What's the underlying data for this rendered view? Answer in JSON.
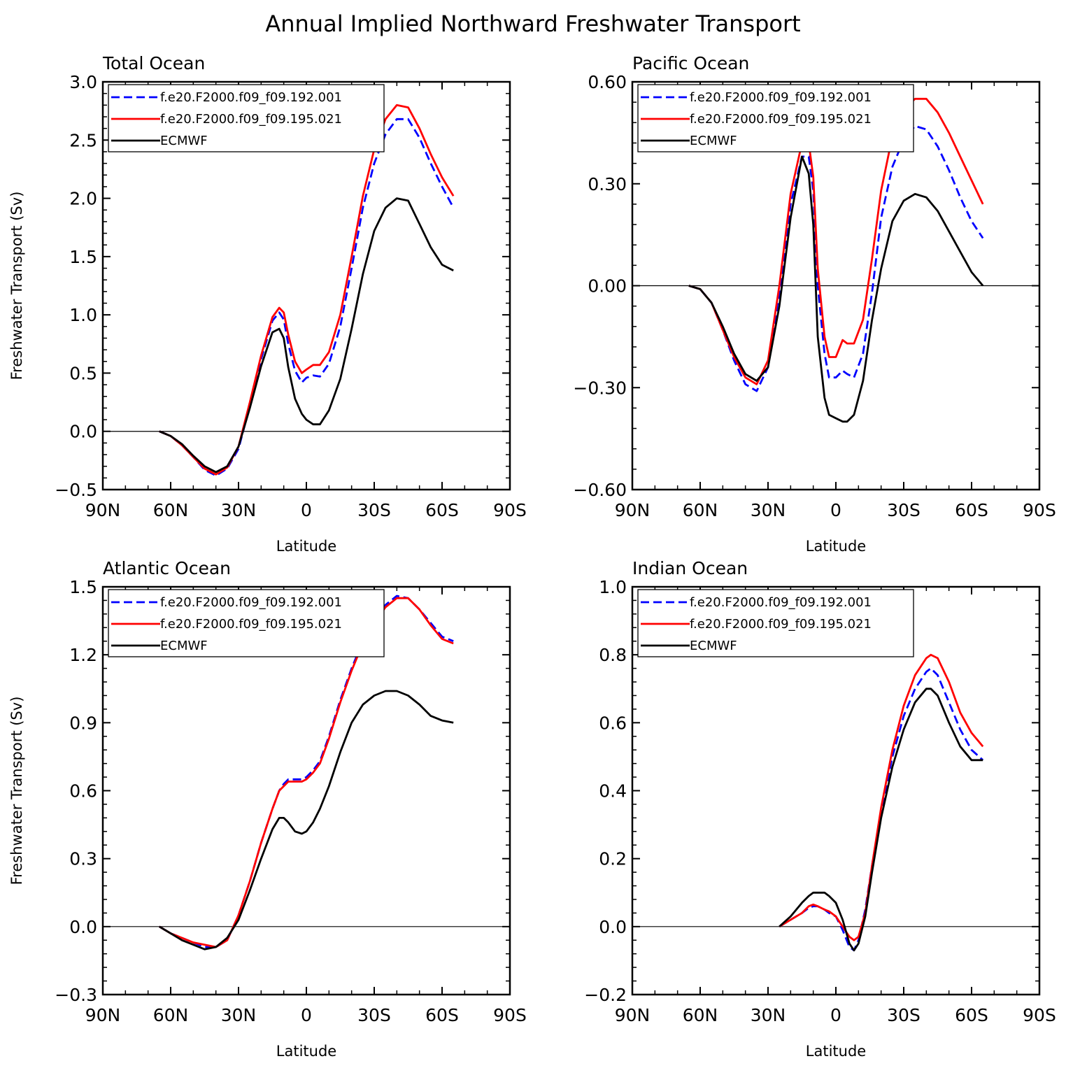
{
  "figure_title": "Annual Implied Northward Freshwater Transport",
  "colors": {
    "series1": "#0000ff",
    "series2": "#ff0000",
    "series3": "#000000"
  },
  "chart_data": [
    {
      "type": "line",
      "title": "Total Ocean",
      "xlabel": "Latitude",
      "ylabel": "Freshwater Transport (Sv)",
      "xlim": [
        90,
        -90
      ],
      "ylim": [
        -0.5,
        3.0
      ],
      "x_ticks": [
        "90N",
        "60N",
        "30N",
        "0",
        "30S",
        "60S",
        "90S"
      ],
      "y_ticks": [
        "−0.5",
        "0.0",
        "0.5",
        "1.0",
        "1.5",
        "2.0",
        "2.5",
        "3.0"
      ],
      "legend_position": "top-left",
      "series": [
        {
          "name": "f.e20.F2000.f09_f09.192.001",
          "style": "dashed",
          "x": [
            65,
            60,
            55,
            50,
            45,
            40,
            35,
            30,
            25,
            20,
            15,
            12,
            10,
            8,
            5,
            2,
            0,
            -3,
            -6,
            -10,
            -15,
            -20,
            -25,
            -30,
            -35,
            -40,
            -45,
            -50,
            -55,
            -60,
            -65
          ],
          "y": [
            0,
            -0.04,
            -0.12,
            -0.22,
            -0.33,
            -0.38,
            -0.32,
            -0.15,
            0.22,
            0.62,
            0.95,
            1.02,
            0.96,
            0.75,
            0.52,
            0.42,
            0.46,
            0.48,
            0.47,
            0.58,
            0.9,
            1.4,
            1.92,
            2.3,
            2.55,
            2.68,
            2.68,
            2.52,
            2.3,
            2.1,
            1.92
          ]
        },
        {
          "name": "f.e20.F2000.f09_f09.195.021",
          "style": "solid",
          "x": [
            65,
            60,
            55,
            50,
            45,
            40,
            35,
            30,
            25,
            20,
            15,
            12,
            10,
            8,
            5,
            2,
            0,
            -3,
            -6,
            -10,
            -15,
            -20,
            -25,
            -30,
            -35,
            -40,
            -45,
            -50,
            -55,
            -60,
            -65
          ],
          "y": [
            0,
            -0.04,
            -0.12,
            -0.22,
            -0.32,
            -0.37,
            -0.31,
            -0.13,
            0.25,
            0.65,
            0.98,
            1.06,
            1.02,
            0.83,
            0.6,
            0.5,
            0.53,
            0.57,
            0.57,
            0.68,
            1.0,
            1.5,
            2.02,
            2.42,
            2.68,
            2.8,
            2.78,
            2.6,
            2.38,
            2.18,
            2.02
          ]
        },
        {
          "name": "ECMWF",
          "style": "solid",
          "x": [
            65,
            60,
            55,
            50,
            45,
            40,
            35,
            30,
            25,
            20,
            15,
            12,
            10,
            8,
            5,
            2,
            0,
            -3,
            -6,
            -10,
            -15,
            -20,
            -25,
            -30,
            -35,
            -40,
            -45,
            -50,
            -55,
            -60,
            -65
          ],
          "y": [
            0,
            -0.04,
            -0.11,
            -0.21,
            -0.3,
            -0.35,
            -0.3,
            -0.13,
            0.2,
            0.56,
            0.85,
            0.88,
            0.8,
            0.55,
            0.28,
            0.15,
            0.1,
            0.06,
            0.06,
            0.18,
            0.45,
            0.88,
            1.35,
            1.72,
            1.92,
            2.0,
            1.98,
            1.78,
            1.58,
            1.43,
            1.38
          ]
        }
      ]
    },
    {
      "type": "line",
      "title": "Pacific Ocean",
      "xlabel": "Latitude",
      "ylabel": "",
      "xlim": [
        90,
        -90
      ],
      "ylim": [
        -0.6,
        0.6
      ],
      "x_ticks": [
        "90N",
        "60N",
        "30N",
        "0",
        "30S",
        "60S",
        "90S"
      ],
      "y_ticks": [
        "−0.60",
        "−0.30",
        "0.00",
        "0.30",
        "0.60"
      ],
      "legend_position": "top-left",
      "series": [
        {
          "name": "f.e20.F2000.f09_f09.192.001",
          "style": "dashed",
          "x": [
            65,
            60,
            55,
            50,
            45,
            40,
            35,
            30,
            25,
            20,
            15,
            12,
            10,
            8,
            5,
            3,
            0,
            -3,
            -5,
            -8,
            -12,
            -16,
            -20,
            -25,
            -30,
            -35,
            -40,
            -45,
            -50,
            -55,
            -60,
            -65
          ],
          "y": [
            0,
            -0.01,
            -0.05,
            -0.13,
            -0.22,
            -0.29,
            -0.31,
            -0.24,
            -0.02,
            0.24,
            0.38,
            0.38,
            0.28,
            0.0,
            -0.2,
            -0.27,
            -0.27,
            -0.25,
            -0.26,
            -0.27,
            -0.2,
            -0.02,
            0.2,
            0.35,
            0.43,
            0.47,
            0.46,
            0.41,
            0.34,
            0.26,
            0.19,
            0.14
          ]
        },
        {
          "name": "f.e20.F2000.f09_f09.195.021",
          "style": "solid",
          "x": [
            65,
            60,
            55,
            50,
            45,
            40,
            35,
            30,
            25,
            20,
            15,
            12,
            10,
            8,
            5,
            3,
            0,
            -3,
            -5,
            -8,
            -12,
            -16,
            -20,
            -25,
            -30,
            -35,
            -40,
            -45,
            -50,
            -55,
            -60,
            -65
          ],
          "y": [
            0,
            -0.01,
            -0.05,
            -0.13,
            -0.21,
            -0.27,
            -0.29,
            -0.22,
            0.0,
            0.27,
            0.42,
            0.42,
            0.32,
            0.05,
            -0.15,
            -0.21,
            -0.21,
            -0.16,
            -0.17,
            -0.17,
            -0.1,
            0.08,
            0.28,
            0.44,
            0.52,
            0.55,
            0.55,
            0.51,
            0.45,
            0.38,
            0.31,
            0.24
          ]
        },
        {
          "name": "ECMWF",
          "style": "solid",
          "x": [
            65,
            60,
            55,
            50,
            45,
            40,
            35,
            30,
            25,
            20,
            15,
            12,
            10,
            8,
            5,
            3,
            0,
            -3,
            -5,
            -8,
            -12,
            -16,
            -20,
            -25,
            -30,
            -35,
            -40,
            -45,
            -50,
            -55,
            -60,
            -65
          ],
          "y": [
            0,
            -0.01,
            -0.05,
            -0.12,
            -0.2,
            -0.26,
            -0.28,
            -0.24,
            -0.06,
            0.2,
            0.38,
            0.33,
            0.18,
            -0.15,
            -0.33,
            -0.38,
            -0.39,
            -0.4,
            -0.4,
            -0.38,
            -0.28,
            -0.1,
            0.05,
            0.19,
            0.25,
            0.27,
            0.26,
            0.22,
            0.16,
            0.1,
            0.04,
            0.0
          ]
        }
      ]
    },
    {
      "type": "line",
      "title": "Atlantic Ocean",
      "xlabel": "Latitude",
      "ylabel": "Freshwater Transport (Sv)",
      "xlim": [
        90,
        -90
      ],
      "ylim": [
        -0.3,
        1.5
      ],
      "x_ticks": [
        "90N",
        "60N",
        "30N",
        "0",
        "30S",
        "60S",
        "90S"
      ],
      "y_ticks": [
        "−0.3",
        "0.0",
        "0.3",
        "0.6",
        "0.9",
        "1.2",
        "1.5"
      ],
      "legend_position": "top-left",
      "series": [
        {
          "name": "f.e20.F2000.f09_f09.192.001",
          "style": "dashed",
          "x": [
            65,
            60,
            55,
            50,
            45,
            40,
            35,
            30,
            25,
            20,
            15,
            12,
            10,
            8,
            5,
            2,
            0,
            -3,
            -6,
            -10,
            -15,
            -20,
            -25,
            -30,
            -35,
            -40,
            -45,
            -50,
            -55,
            -60,
            -65
          ],
          "y": [
            0,
            -0.03,
            -0.05,
            -0.07,
            -0.09,
            -0.09,
            -0.06,
            0.05,
            0.2,
            0.37,
            0.52,
            0.6,
            0.63,
            0.65,
            0.65,
            0.65,
            0.66,
            0.69,
            0.73,
            0.84,
            1.0,
            1.14,
            1.26,
            1.35,
            1.42,
            1.46,
            1.45,
            1.4,
            1.34,
            1.28,
            1.26
          ]
        },
        {
          "name": "f.e20.F2000.f09_f09.195.021",
          "style": "solid",
          "x": [
            65,
            60,
            55,
            50,
            45,
            40,
            35,
            30,
            25,
            20,
            15,
            12,
            10,
            8,
            5,
            2,
            0,
            -3,
            -6,
            -10,
            -15,
            -20,
            -25,
            -30,
            -35,
            -40,
            -45,
            -50,
            -55,
            -60,
            -65
          ],
          "y": [
            0,
            -0.03,
            -0.05,
            -0.07,
            -0.08,
            -0.09,
            -0.06,
            0.05,
            0.2,
            0.37,
            0.52,
            0.6,
            0.62,
            0.64,
            0.64,
            0.64,
            0.65,
            0.68,
            0.72,
            0.83,
            0.99,
            1.13,
            1.25,
            1.34,
            1.41,
            1.45,
            1.45,
            1.4,
            1.33,
            1.27,
            1.25
          ]
        },
        {
          "name": "ECMWF",
          "style": "solid",
          "x": [
            65,
            60,
            55,
            50,
            45,
            40,
            35,
            30,
            25,
            20,
            15,
            12,
            10,
            8,
            5,
            2,
            0,
            -3,
            -6,
            -10,
            -15,
            -20,
            -25,
            -30,
            -35,
            -40,
            -45,
            -50,
            -55,
            -60,
            -65
          ],
          "y": [
            0,
            -0.03,
            -0.06,
            -0.08,
            -0.1,
            -0.09,
            -0.05,
            0.03,
            0.16,
            0.3,
            0.43,
            0.48,
            0.48,
            0.46,
            0.42,
            0.41,
            0.42,
            0.46,
            0.52,
            0.62,
            0.77,
            0.9,
            0.98,
            1.02,
            1.04,
            1.04,
            1.02,
            0.98,
            0.93,
            0.91,
            0.9
          ]
        }
      ]
    },
    {
      "type": "line",
      "title": "Indian Ocean",
      "xlabel": "Latitude",
      "ylabel": "",
      "xlim": [
        90,
        -90
      ],
      "ylim": [
        -0.2,
        1.0
      ],
      "x_ticks": [
        "90N",
        "60N",
        "30N",
        "0",
        "30S",
        "60S",
        "90S"
      ],
      "y_ticks": [
        "−0.2",
        "0.0",
        "0.2",
        "0.4",
        "0.6",
        "0.8",
        "1.0"
      ],
      "legend_position": "top-left",
      "series": [
        {
          "name": "f.e20.F2000.f09_f09.192.001",
          "style": "dashed",
          "x": [
            25,
            20,
            15,
            12,
            10,
            8,
            5,
            3,
            0,
            -3,
            -6,
            -8,
            -10,
            -13,
            -16,
            -20,
            -25,
            -30,
            -35,
            -40,
            -42,
            -45,
            -50,
            -55,
            -60,
            -65
          ],
          "y": [
            0,
            0.02,
            0.04,
            0.055,
            0.06,
            0.06,
            0.05,
            0.04,
            0.03,
            -0.01,
            -0.06,
            -0.07,
            -0.04,
            0.05,
            0.18,
            0.34,
            0.5,
            0.62,
            0.7,
            0.75,
            0.76,
            0.74,
            0.66,
            0.58,
            0.52,
            0.49
          ]
        },
        {
          "name": "f.e20.F2000.f09_f09.195.021",
          "style": "solid",
          "x": [
            25,
            20,
            15,
            12,
            10,
            8,
            5,
            3,
            0,
            -3,
            -6,
            -8,
            -10,
            -13,
            -16,
            -20,
            -25,
            -30,
            -35,
            -40,
            -42,
            -45,
            -50,
            -55,
            -60,
            -65
          ],
          "y": [
            0,
            0.02,
            0.04,
            0.06,
            0.065,
            0.06,
            0.05,
            0.045,
            0.03,
            0.0,
            -0.03,
            -0.04,
            -0.03,
            0.04,
            0.18,
            0.35,
            0.52,
            0.65,
            0.74,
            0.79,
            0.8,
            0.79,
            0.72,
            0.63,
            0.57,
            0.53
          ]
        },
        {
          "name": "ECMWF",
          "style": "solid",
          "x": [
            25,
            20,
            15,
            12,
            10,
            8,
            5,
            3,
            0,
            -3,
            -6,
            -8,
            -10,
            -13,
            -16,
            -20,
            -25,
            -30,
            -35,
            -40,
            -42,
            -45,
            -50,
            -55,
            -60,
            -65
          ],
          "y": [
            0,
            0.03,
            0.07,
            0.09,
            0.1,
            0.1,
            0.1,
            0.09,
            0.07,
            0.02,
            -0.05,
            -0.07,
            -0.05,
            0.03,
            0.16,
            0.32,
            0.47,
            0.58,
            0.66,
            0.7,
            0.7,
            0.68,
            0.6,
            0.53,
            0.49,
            0.49
          ]
        }
      ]
    }
  ]
}
